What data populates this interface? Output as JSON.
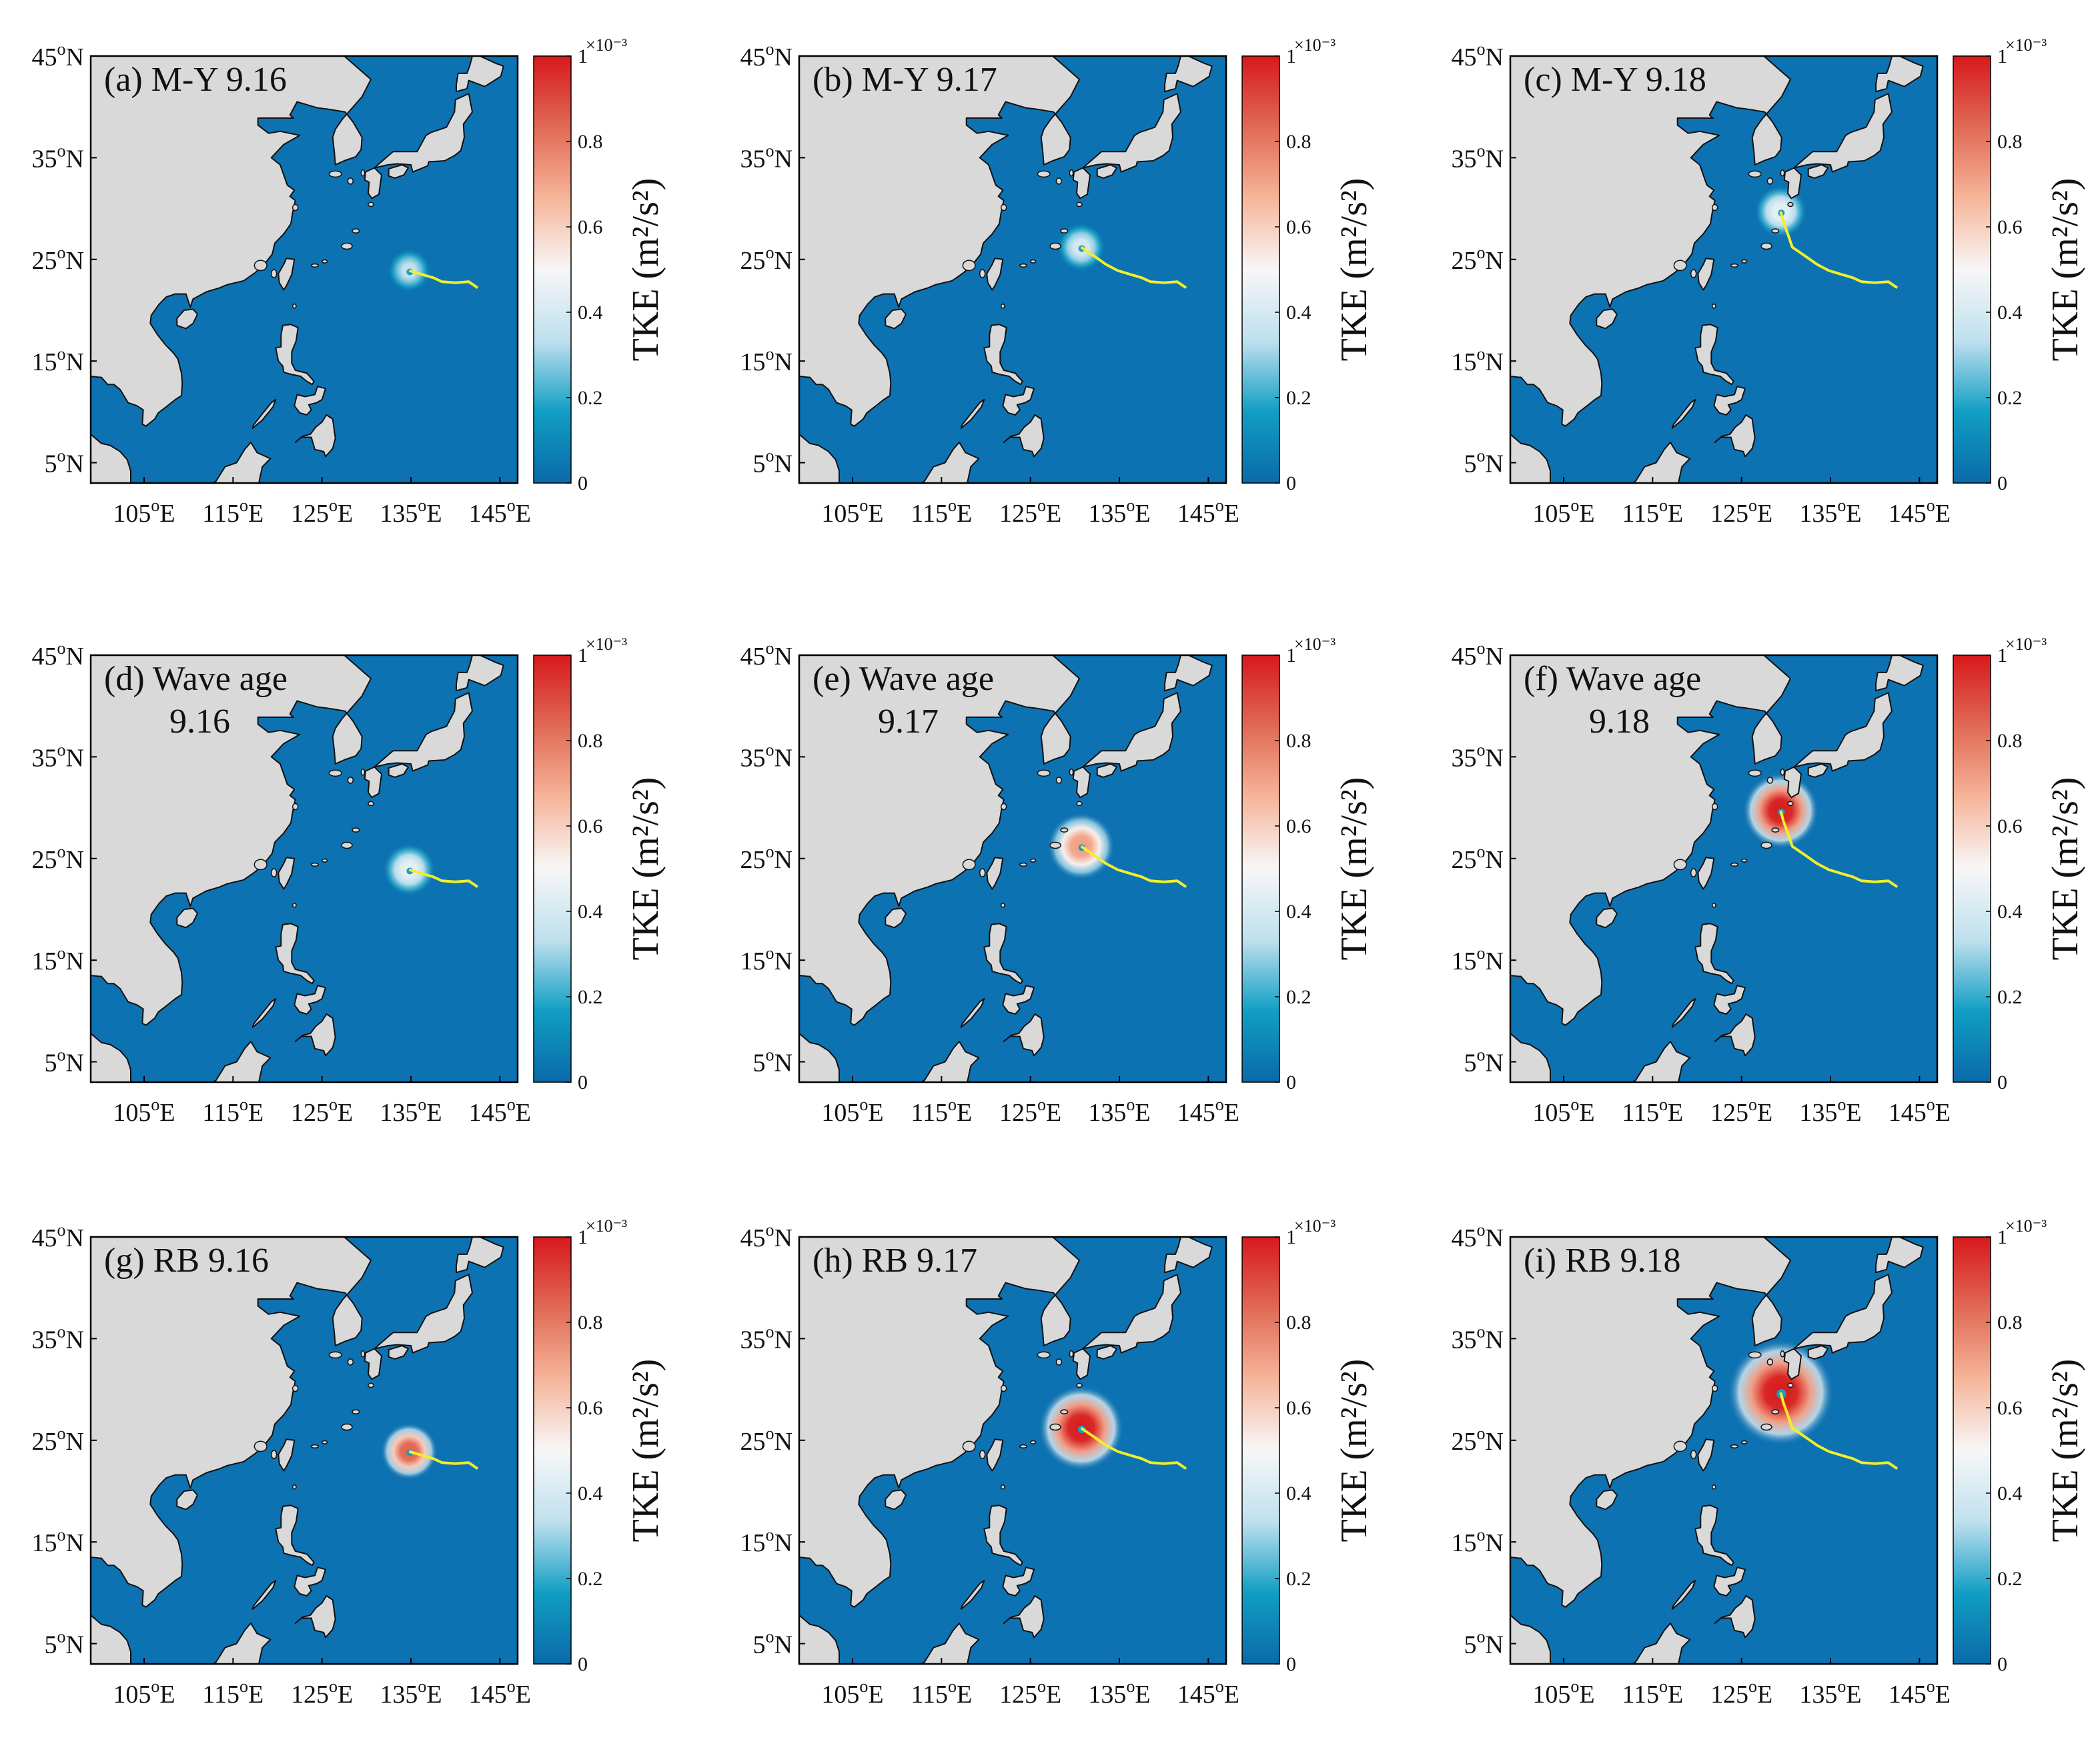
{
  "figure": {
    "colorbar": {
      "label": "TKE (m²/s²)",
      "ticks": [
        "0",
        "0.2",
        "0.4",
        "0.6",
        "0.8",
        "1"
      ],
      "exponent": "×10⁻³",
      "colors": [
        "#0a6aa8",
        "#119ec4",
        "#bfe0ee",
        "#f7f7f7",
        "#f6b59a",
        "#e06a55",
        "#d7191c"
      ]
    },
    "colors": {
      "ocean": "#0d72b2",
      "land": "#d9d9d9",
      "coast": "#111111",
      "track": "#f2ef2a",
      "tke_high": "#e3151b"
    },
    "axes": {
      "lat_ticks": [
        "45°N",
        "35°N",
        "25°N",
        "15°N",
        "5°N"
      ],
      "lon_ticks": [
        "105°E",
        "115°E",
        "125°E",
        "135°E",
        "145°E"
      ]
    }
  },
  "chart_data": [
    {
      "type": "heatmap",
      "panel": "(a)",
      "title_line1": "(a) M-Y 9.16",
      "title_line2": "",
      "scheme": "M-Y",
      "date": "9.16",
      "peak_tke": 0.35,
      "radius": 2.5,
      "center": {
        "lon": 134.8,
        "lat": 23.9
      },
      "track": [
        [
          142.5,
          22.2
        ],
        [
          141.5,
          22.8
        ],
        [
          140.0,
          22.7
        ],
        [
          138.5,
          22.8
        ],
        [
          137.5,
          23.2
        ],
        [
          136.3,
          23.5
        ],
        [
          134.8,
          23.9
        ]
      ],
      "xlim": [
        99,
        147
      ],
      "ylim": [
        3,
        45
      ],
      "colorbar_range": [
        0,
        0.001
      ]
    },
    {
      "type": "heatmap",
      "panel": "(b)",
      "title_line1": "(b) M-Y 9.17",
      "title_line2": "",
      "scheme": "M-Y",
      "date": "9.17",
      "peak_tke": 0.4,
      "radius": 2.8,
      "center": {
        "lon": 130.7,
        "lat": 26.2
      },
      "track": [
        [
          142.5,
          22.2
        ],
        [
          141.5,
          22.8
        ],
        [
          140.0,
          22.7
        ],
        [
          138.5,
          22.8
        ],
        [
          137.5,
          23.2
        ],
        [
          136.3,
          23.5
        ],
        [
          134.8,
          23.9
        ],
        [
          133.5,
          24.5
        ],
        [
          132.2,
          25.3
        ],
        [
          130.7,
          26.2
        ]
      ],
      "xlim": [
        99,
        147
      ],
      "ylim": [
        3,
        45
      ],
      "colorbar_range": [
        0,
        0.001
      ]
    },
    {
      "type": "heatmap",
      "panel": "(c)",
      "title_line1": "(c) M-Y 9.18",
      "title_line2": "",
      "scheme": "M-Y",
      "date": "9.18",
      "peak_tke": 0.45,
      "radius": 3.0,
      "center": {
        "lon": 129.4,
        "lat": 29.7
      },
      "track": [
        [
          142.5,
          22.2
        ],
        [
          141.5,
          22.8
        ],
        [
          140.0,
          22.7
        ],
        [
          138.5,
          22.8
        ],
        [
          137.5,
          23.2
        ],
        [
          136.3,
          23.5
        ],
        [
          134.8,
          23.9
        ],
        [
          133.5,
          24.5
        ],
        [
          132.2,
          25.3
        ],
        [
          130.7,
          26.2
        ],
        [
          130.2,
          27.5
        ],
        [
          129.7,
          28.7
        ],
        [
          129.4,
          29.7
        ]
      ],
      "xlim": [
        99,
        147
      ],
      "ylim": [
        3,
        45
      ],
      "colorbar_range": [
        0,
        0.001
      ]
    },
    {
      "type": "heatmap",
      "panel": "(d)",
      "title_line1": "(d) Wave age",
      "title_line2": "9.16",
      "scheme": "Wave age",
      "date": "9.16",
      "peak_tke": 0.45,
      "radius": 3.0,
      "center": {
        "lon": 134.8,
        "lat": 23.9
      },
      "track": [
        [
          142.5,
          22.2
        ],
        [
          141.5,
          22.8
        ],
        [
          140.0,
          22.7
        ],
        [
          138.5,
          22.8
        ],
        [
          137.5,
          23.2
        ],
        [
          136.3,
          23.5
        ],
        [
          134.8,
          23.9
        ]
      ],
      "xlim": [
        99,
        147
      ],
      "ylim": [
        3,
        45
      ],
      "colorbar_range": [
        0,
        0.001
      ]
    },
    {
      "type": "heatmap",
      "panel": "(e)",
      "title_line1": "(e) Wave age",
      "title_line2": "9.17",
      "scheme": "Wave age",
      "date": "9.17",
      "peak_tke": 0.72,
      "radius": 3.8,
      "center": {
        "lon": 130.7,
        "lat": 26.2
      },
      "track": [
        [
          142.5,
          22.2
        ],
        [
          141.5,
          22.8
        ],
        [
          140.0,
          22.7
        ],
        [
          138.5,
          22.8
        ],
        [
          137.5,
          23.2
        ],
        [
          136.3,
          23.5
        ],
        [
          134.8,
          23.9
        ],
        [
          133.5,
          24.5
        ],
        [
          132.2,
          25.3
        ],
        [
          130.7,
          26.2
        ]
      ],
      "xlim": [
        99,
        147
      ],
      "ylim": [
        3,
        45
      ],
      "colorbar_range": [
        0,
        0.001
      ]
    },
    {
      "type": "heatmap",
      "panel": "(f)",
      "title_line1": "(f) Wave age",
      "title_line2": "9.18",
      "scheme": "Wave age",
      "date": "9.18",
      "peak_tke": 1.0,
      "radius": 4.3,
      "center": {
        "lon": 129.4,
        "lat": 29.7
      },
      "track": [
        [
          142.5,
          22.2
        ],
        [
          141.5,
          22.8
        ],
        [
          140.0,
          22.7
        ],
        [
          138.5,
          22.8
        ],
        [
          137.5,
          23.2
        ],
        [
          136.3,
          23.5
        ],
        [
          134.8,
          23.9
        ],
        [
          133.5,
          24.5
        ],
        [
          132.2,
          25.3
        ],
        [
          130.7,
          26.2
        ],
        [
          130.2,
          27.5
        ],
        [
          129.7,
          28.7
        ],
        [
          129.4,
          29.7
        ]
      ],
      "xlim": [
        99,
        147
      ],
      "ylim": [
        3,
        45
      ],
      "colorbar_range": [
        0,
        0.001
      ]
    },
    {
      "type": "heatmap",
      "panel": "(g)",
      "title_line1": "(g) RB 9.16",
      "title_line2": "",
      "scheme": "RB",
      "date": "9.16",
      "peak_tke": 0.85,
      "radius": 3.2,
      "center": {
        "lon": 134.8,
        "lat": 23.9
      },
      "track": [
        [
          142.5,
          22.2
        ],
        [
          141.5,
          22.8
        ],
        [
          140.0,
          22.7
        ],
        [
          138.5,
          22.8
        ],
        [
          137.5,
          23.2
        ],
        [
          136.3,
          23.5
        ],
        [
          134.8,
          23.9
        ]
      ],
      "xlim": [
        99,
        147
      ],
      "ylim": [
        3,
        45
      ],
      "colorbar_range": [
        0,
        0.001
      ]
    },
    {
      "type": "heatmap",
      "panel": "(h)",
      "title_line1": "(h) RB 9.17",
      "title_line2": "",
      "scheme": "RB",
      "date": "9.17",
      "peak_tke": 1.0,
      "radius": 4.8,
      "center": {
        "lon": 130.7,
        "lat": 26.2
      },
      "track": [
        [
          142.5,
          22.2
        ],
        [
          141.5,
          22.8
        ],
        [
          140.0,
          22.7
        ],
        [
          138.5,
          22.8
        ],
        [
          137.5,
          23.2
        ],
        [
          136.3,
          23.5
        ],
        [
          134.8,
          23.9
        ],
        [
          133.5,
          24.5
        ],
        [
          132.2,
          25.3
        ],
        [
          130.7,
          26.2
        ]
      ],
      "xlim": [
        99,
        147
      ],
      "ylim": [
        3,
        45
      ],
      "colorbar_range": [
        0,
        0.001
      ]
    },
    {
      "type": "heatmap",
      "panel": "(i)",
      "title_line1": "(i) RB 9.18",
      "title_line2": "",
      "scheme": "RB",
      "date": "9.18",
      "peak_tke": 1.0,
      "radius": 6.0,
      "center": {
        "lon": 129.4,
        "lat": 29.7
      },
      "track": [
        [
          142.5,
          22.2
        ],
        [
          141.5,
          22.8
        ],
        [
          140.0,
          22.7
        ],
        [
          138.5,
          22.8
        ],
        [
          137.5,
          23.2
        ],
        [
          136.3,
          23.5
        ],
        [
          134.8,
          23.9
        ],
        [
          133.5,
          24.5
        ],
        [
          132.2,
          25.3
        ],
        [
          130.7,
          26.2
        ],
        [
          130.2,
          27.5
        ],
        [
          129.7,
          28.7
        ],
        [
          129.4,
          29.7
        ]
      ],
      "xlim": [
        99,
        147
      ],
      "ylim": [
        3,
        45
      ],
      "colorbar_range": [
        0,
        0.001
      ]
    }
  ]
}
